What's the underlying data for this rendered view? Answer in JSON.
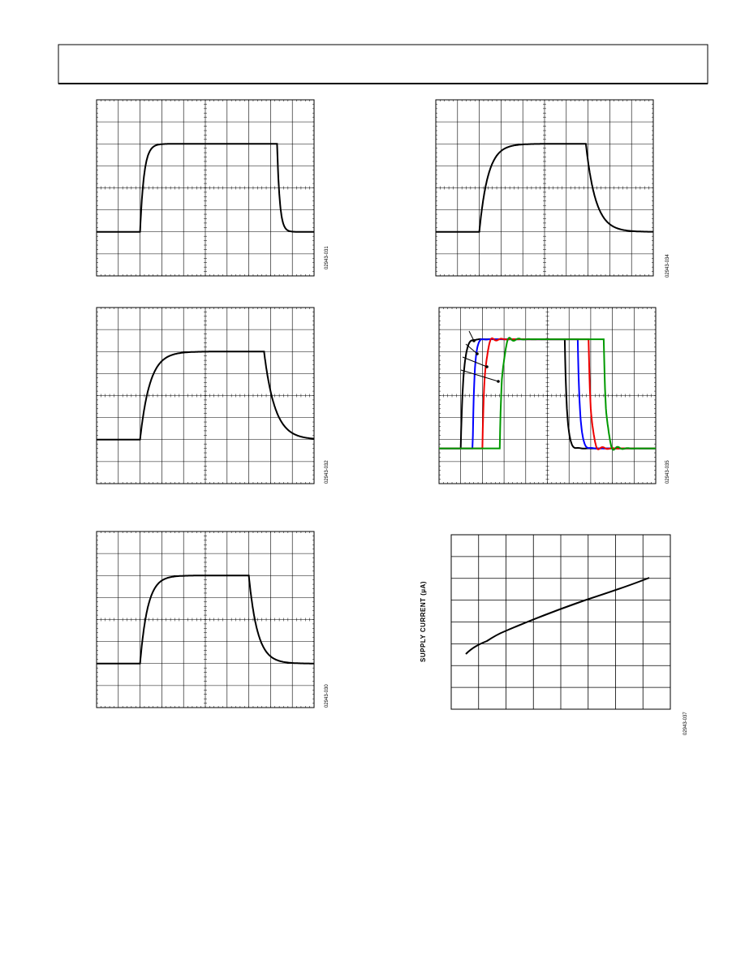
{
  "figures": [
    {
      "id": "02943-031"
    },
    {
      "id": "02943-034"
    },
    {
      "id": "02943-032"
    },
    {
      "id": "02943-035"
    },
    {
      "id": "02943-030"
    },
    {
      "id": "02943-037",
      "y_axis_label": "SUPPLY CURRENT (µA)"
    }
  ]
}
